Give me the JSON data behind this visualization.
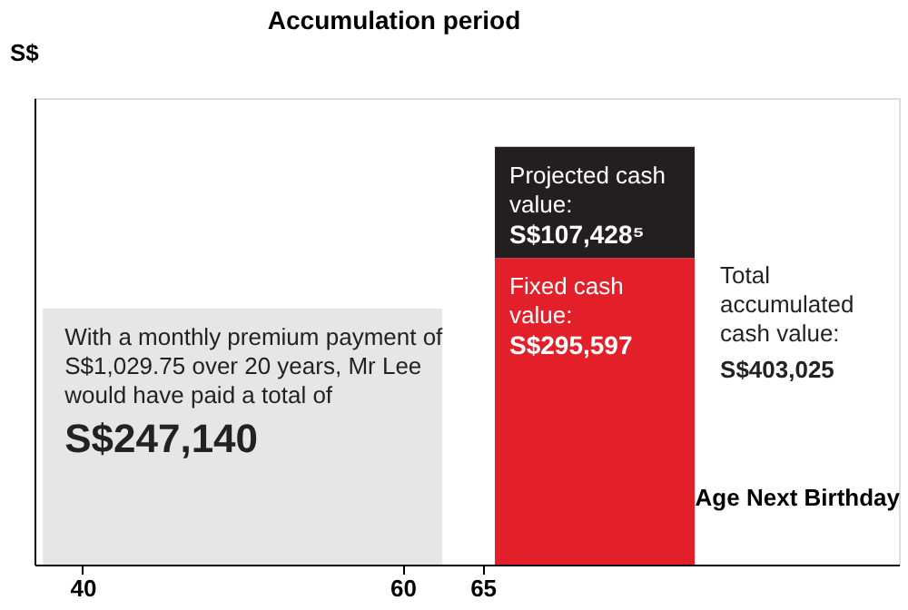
{
  "chart_data": {
    "type": "bar",
    "title": "Accumulation period",
    "xlabel": "Age Next Birthday",
    "ylabel": "S$",
    "x": [
      50,
      72
    ],
    "xlim": [
      37,
      91
    ],
    "xticks": [
      40,
      60,
      65
    ],
    "stacked": true,
    "grid": false,
    "tick_labels": "x",
    "series": [
      {
        "color": "#e6e6e6",
        "values": [
          247140,
          null
        ],
        "value_labels": [
          "S$247,140",
          null
        ]
      },
      {
        "color": "#e3202a",
        "values": [
          null,
          295597
        ],
        "value_labels": [
          null,
          "S$295,597"
        ]
      },
      {
        "color": "#231f20",
        "values": [
          null,
          107428
        ],
        "value_labels": [
          null,
          "S$107,428⁵"
        ]
      }
    ],
    "totals": [
      null,
      "S$403,025"
    ],
    "annotations": [
      "With a monthly premium payment of S$1,029.75 over 20 years, Mr Lee would have paid a total of",
      "Fixed cash value:",
      "Projected cash value:",
      "Total accumulated cash value:"
    ]
  }
}
